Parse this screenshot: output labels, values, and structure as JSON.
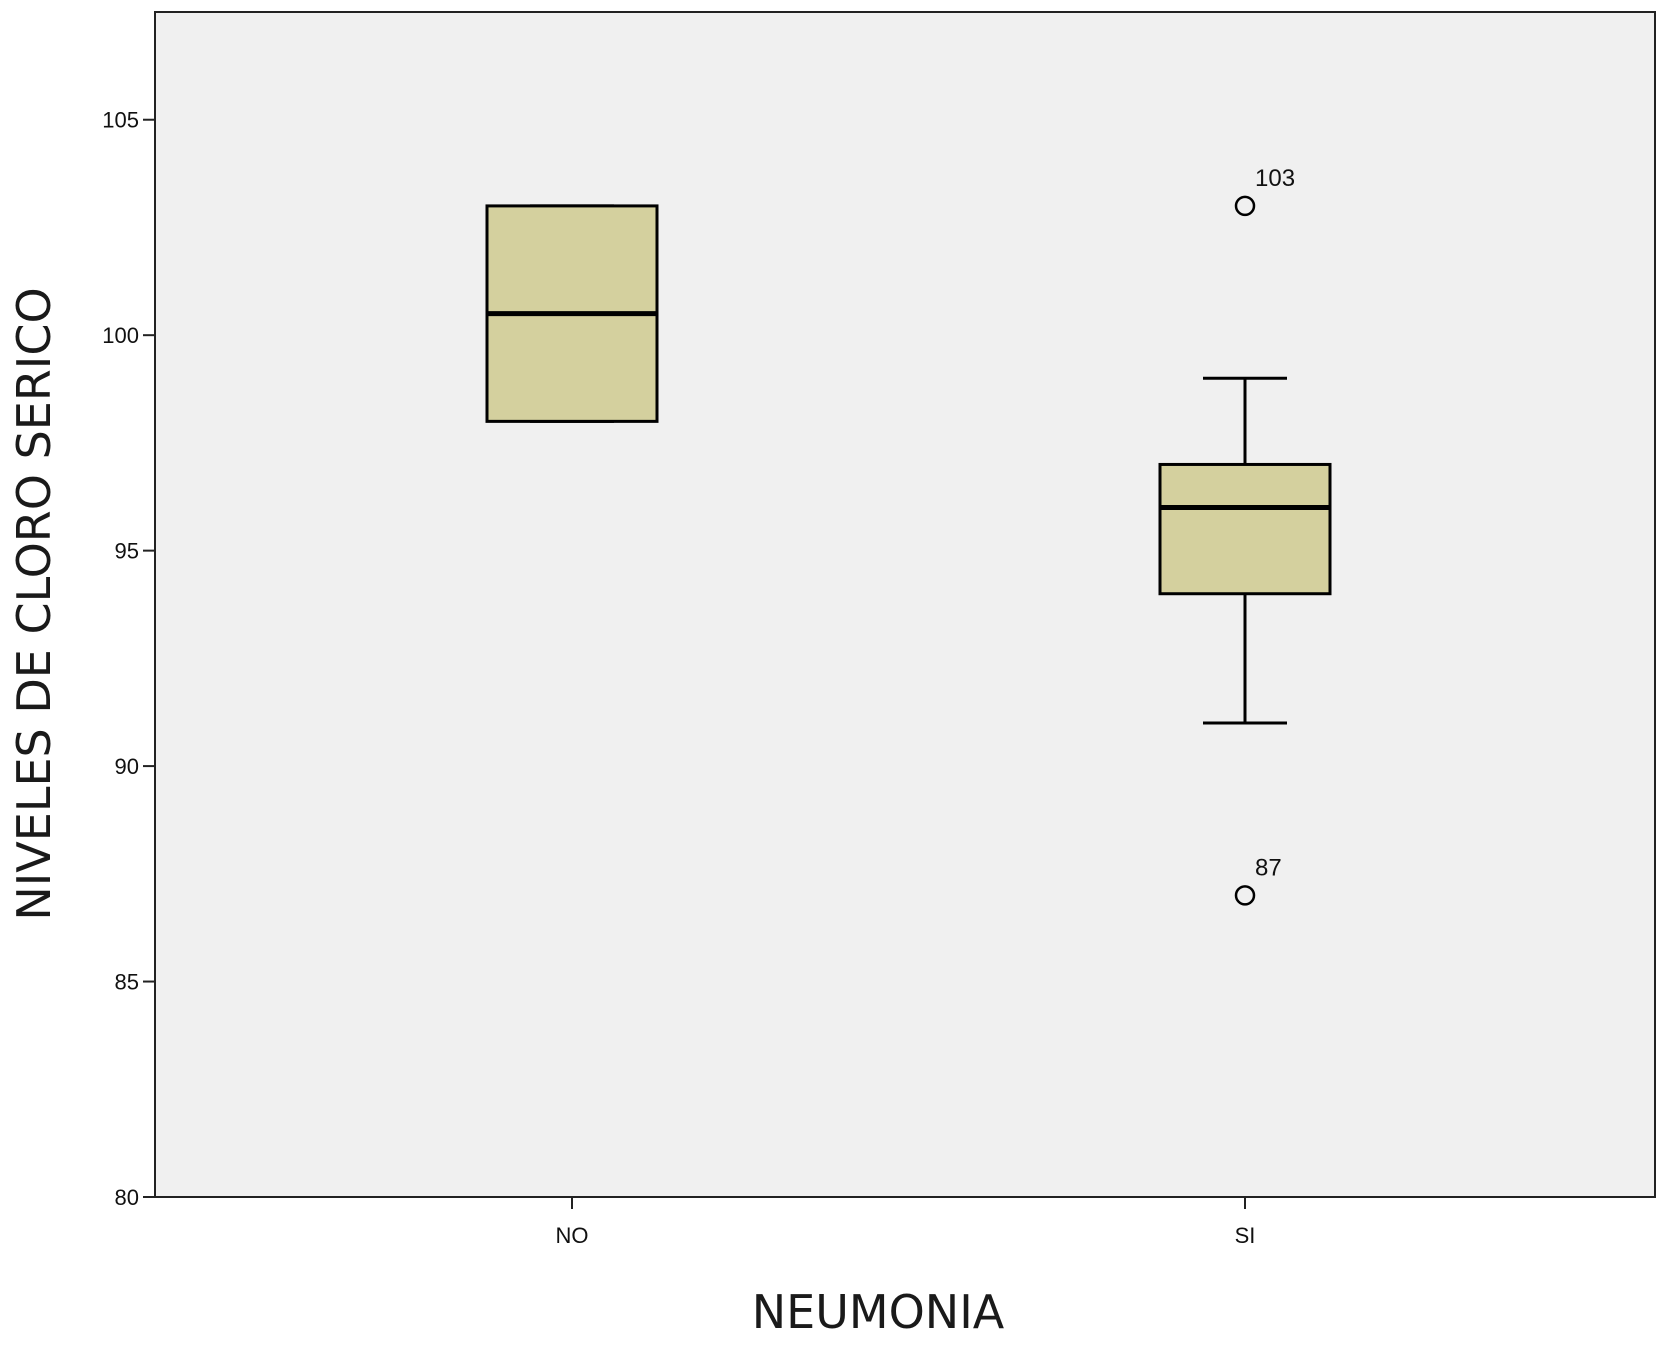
{
  "chart_data": {
    "type": "boxplot",
    "xlabel": "NEUMONIA",
    "ylabel": "NIVELES DE CLORO SERICO",
    "ylim": [
      80,
      107.5
    ],
    "yticks": [
      80,
      85,
      90,
      95,
      100,
      105
    ],
    "categories": [
      "NO",
      "SI"
    ],
    "boxes": [
      {
        "category": "NO",
        "min": 98,
        "q1": 98,
        "median": 100.5,
        "q3": 103,
        "max": 103,
        "outliers": []
      },
      {
        "category": "SI",
        "min": 91,
        "q1": 94,
        "median": 96,
        "q3": 97,
        "max": 99,
        "outliers": [
          {
            "value": 103,
            "label": "103"
          },
          {
            "value": 87,
            "label": "87"
          }
        ]
      }
    ],
    "grid": false,
    "colors": {
      "box_fill": "#d4d09e",
      "plot_background": "#f0f0f0",
      "line": "#000000"
    }
  }
}
